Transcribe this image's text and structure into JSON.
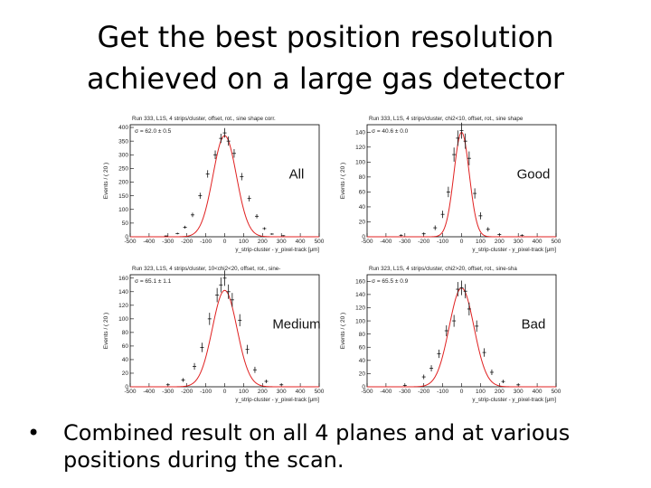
{
  "slide": {
    "title_line1": "Get the best position resolution",
    "title_line2": "achieved on a large gas detector",
    "bullet_symbol": "•",
    "bullet": "Combined result on all 4 planes and at various positions during the scan."
  },
  "colors": {
    "data_points": "#111111",
    "fit_curve": "#e02020",
    "frame": "#000000"
  },
  "chart_data": [
    {
      "type": "scatter",
      "title": "Run 333, L1S, 4 strips/cluster, offset, rot., sine shape corr.",
      "label": "All",
      "fit_text": "σ = 62.0 ± 0.5",
      "ylabel": "Events / ( 20 )",
      "xlabel": "y_strip-cluster - y_pixel-track [μm]",
      "xlim": [
        -500,
        500
      ],
      "ylim": [
        0,
        410
      ],
      "xticks": [
        -500,
        -400,
        -300,
        -200,
        -100,
        0,
        100,
        200,
        300,
        400,
        500
      ],
      "yticks": [
        0,
        50,
        100,
        150,
        200,
        250,
        300,
        350,
        400
      ],
      "fit": {
        "amplitude": 370,
        "mean": 0,
        "sigma": 62
      },
      "series": [
        {
          "x": [
            -310,
            -250,
            -210,
            -170,
            -130,
            -90,
            -50,
            -20,
            0,
            20,
            50,
            90,
            130,
            170,
            210,
            250,
            310
          ],
          "y": [
            3,
            12,
            35,
            80,
            150,
            230,
            300,
            360,
            380,
            350,
            305,
            220,
            140,
            75,
            30,
            10,
            4
          ]
        }
      ]
    },
    {
      "type": "scatter",
      "title": "Run 333, L1S, 4 strips/cluster, chi2<10, offset, rot., sine shape",
      "label": "Good",
      "fit_text": "σ = 40.6 ± 0.0",
      "ylabel": "Events / ( 20 )",
      "xlabel": "y_strip-cluster - y_pixel-track [μm]",
      "xlim": [
        -500,
        500
      ],
      "ylim": [
        0,
        150
      ],
      "xticks": [
        -500,
        -400,
        -300,
        -200,
        -100,
        0,
        100,
        200,
        300,
        400,
        500
      ],
      "yticks": [
        0,
        20,
        40,
        60,
        80,
        100,
        120,
        140
      ],
      "fit": {
        "amplitude": 140,
        "mean": 0,
        "sigma": 40.6
      },
      "series": [
        {
          "x": [
            -320,
            -200,
            -140,
            -100,
            -70,
            -40,
            -20,
            0,
            20,
            40,
            70,
            100,
            140,
            200,
            320
          ],
          "y": [
            2,
            4,
            12,
            30,
            60,
            110,
            132,
            142,
            128,
            105,
            58,
            28,
            10,
            3,
            2
          ]
        }
      ]
    },
    {
      "type": "scatter",
      "title": "Run 323, L1S, 4 strips/cluster, 10<chi2<20, offset, rot., sine-",
      "label": "Medium",
      "fit_text": "σ = 65.1 ± 1.1",
      "ylabel": "Events / ( 20 )",
      "xlabel": "y_strip-cluster - y_pixel-track [μm]",
      "xlim": [
        -500,
        500
      ],
      "ylim": [
        0,
        165
      ],
      "xticks": [
        -500,
        -400,
        -300,
        -200,
        -100,
        0,
        100,
        200,
        300,
        400,
        500
      ],
      "yticks": [
        0,
        20,
        40,
        60,
        80,
        100,
        120,
        140,
        160
      ],
      "fit": {
        "amplitude": 142,
        "mean": 0,
        "sigma": 65.1
      },
      "series": [
        {
          "x": [
            -300,
            -220,
            -160,
            -120,
            -80,
            -40,
            -20,
            0,
            20,
            40,
            80,
            120,
            160,
            220,
            300
          ],
          "y": [
            3,
            10,
            30,
            58,
            100,
            135,
            150,
            160,
            140,
            128,
            98,
            55,
            25,
            8,
            3
          ]
        }
      ]
    },
    {
      "type": "scatter",
      "title": "Run 323, L1S, 4 strips/cluster, chi2>20, offset, rot., sine-sha",
      "label": "Bad",
      "fit_text": "σ = 65.5 ± 0.9",
      "ylabel": "Events / ( 20 )",
      "xlabel": "y_strip-cluster - y_pixel-track [μm]",
      "xlim": [
        -500,
        500
      ],
      "ylim": [
        0,
        170
      ],
      "xticks": [
        -500,
        -400,
        -300,
        -200,
        -100,
        0,
        100,
        200,
        300,
        400,
        500
      ],
      "yticks": [
        0,
        20,
        40,
        60,
        80,
        100,
        120,
        140,
        160
      ],
      "fit": {
        "amplitude": 150,
        "mean": 0,
        "sigma": 65.5
      },
      "series": [
        {
          "x": [
            -300,
            -200,
            -160,
            -120,
            -80,
            -40,
            -20,
            0,
            20,
            40,
            80,
            120,
            160,
            220,
            300
          ],
          "y": [
            2,
            15,
            28,
            50,
            85,
            100,
            148,
            150,
            145,
            118,
            92,
            52,
            22,
            8,
            3
          ]
        }
      ]
    }
  ]
}
